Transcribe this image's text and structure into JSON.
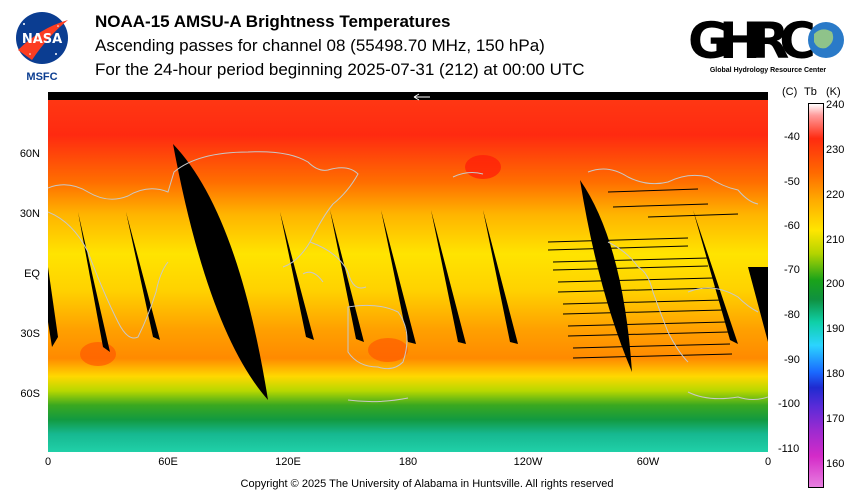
{
  "logos": {
    "nasa": {
      "text": "NASA",
      "caption": "MSFC"
    },
    "ghrc": {
      "text": "GHRC",
      "caption": "Global Hydrology Resource Center"
    }
  },
  "title": {
    "line1": "NOAA-15 AMSU-A Brightness Temperatures",
    "line2": "Ascending passes for channel 08 (55498.70 MHz, 150 hPa)",
    "line3": "For the 24-hour period beginning 2025-07-31 (212) at 00:00 UTC"
  },
  "axes": {
    "lat_labels": [
      "60N",
      "30N",
      "EQ",
      "30S",
      "60S"
    ],
    "lon_labels": [
      "0",
      "60E",
      "120E",
      "180",
      "120W",
      "60W",
      "0"
    ]
  },
  "colorbar": {
    "header_c": "(C)",
    "header_tb": "Tb",
    "header_k": "(K)",
    "celsius_ticks": [
      "-40",
      "-50",
      "-60",
      "-70",
      "-80",
      "-90",
      "-100",
      "-110"
    ],
    "kelvin_ticks": [
      "240",
      "230",
      "220",
      "210",
      "200",
      "190",
      "180",
      "170",
      "160"
    ]
  },
  "colors": {
    "hot": "#ff2a10",
    "warm": "#ff8a00",
    "mid": "#ffd400",
    "green": "#1aa31a",
    "teal": "#18c89a",
    "gap": "#000000"
  },
  "copyright": "Copyright © 2025 The University of Alabama in Huntsville.  All rights reserved"
}
